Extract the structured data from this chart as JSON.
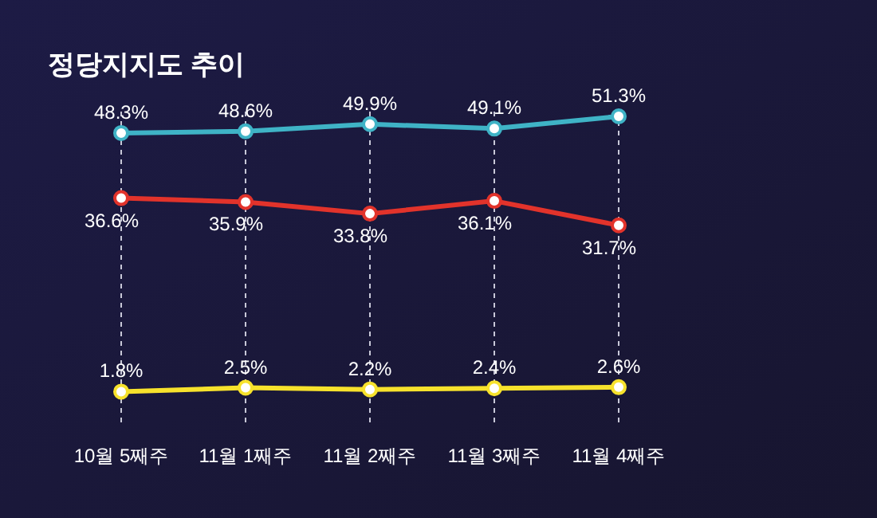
{
  "chart_data": {
    "type": "line",
    "title": "정당지지도 추이",
    "categories": [
      "10월 5째주",
      "11월 1째주",
      "11월 2째주",
      "11월 3째주",
      "11월 4째주"
    ],
    "series": [
      {
        "color": "#3fb3c6",
        "values": [
          48.3,
          48.6,
          49.9,
          49.1,
          51.3
        ],
        "value_labels": [
          "48.3%",
          "48.6%",
          "49.9%",
          "49.1%",
          "51.3%"
        ]
      },
      {
        "color": "#e2332b",
        "values": [
          36.6,
          35.9,
          33.8,
          36.1,
          31.7
        ],
        "value_labels": [
          "36.6%",
          "35.9%",
          "33.8%",
          "36.1%",
          "31.7%"
        ]
      },
      {
        "color": "#f7e22c",
        "values": [
          1.8,
          2.5,
          2.2,
          2.4,
          2.6
        ],
        "value_labels": [
          "1.8%",
          "2.5%",
          "2.2%",
          "2.4%",
          "2.6%"
        ]
      }
    ],
    "marker": "circle",
    "grid": "x",
    "line_style": "solid"
  }
}
